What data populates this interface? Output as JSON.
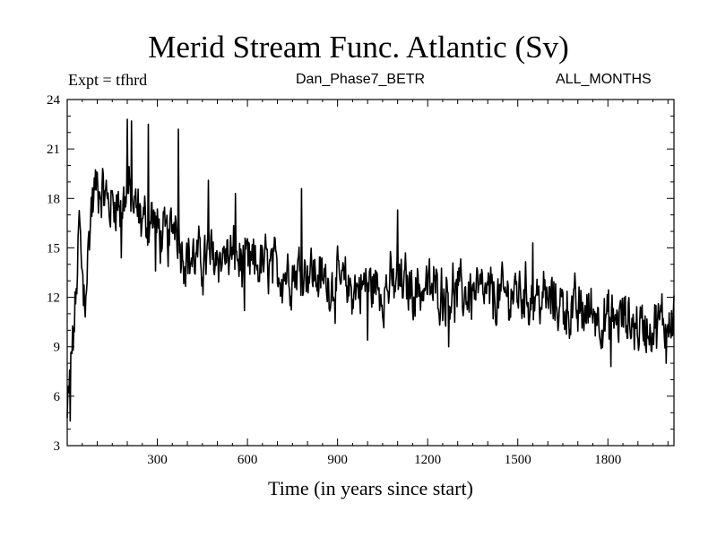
{
  "chart_data": {
    "type": "line",
    "title": "Merid Stream Func. Atlantic (Sv)",
    "left_label": "Expt = tfhrd",
    "center_label": "Dan_Phase7_BETR",
    "right_label": "ALL_MONTHS",
    "xlabel": "Time (in years since start)",
    "ylabel": "",
    "xlim": [
      0,
      2020
    ],
    "ylim": [
      3,
      24
    ],
    "xticks": [
      300,
      600,
      900,
      1200,
      1500,
      1800
    ],
    "yticks": [
      3,
      6,
      9,
      12,
      15,
      18,
      21,
      24
    ],
    "grid": false,
    "series": [
      {
        "name": "Merid Stream Func. Atlantic",
        "x": [
          0,
          10,
          20,
          30,
          40,
          50,
          60,
          80,
          100,
          120,
          140,
          160,
          180,
          200,
          220,
          240,
          260,
          280,
          300,
          320,
          340,
          360,
          380,
          400,
          450,
          500,
          550,
          600,
          650,
          700,
          750,
          800,
          850,
          900,
          950,
          1000,
          1050,
          1100,
          1150,
          1200,
          1250,
          1300,
          1350,
          1400,
          1450,
          1500,
          1550,
          1600,
          1650,
          1700,
          1750,
          1800,
          1850,
          1900,
          1950,
          2000,
          2020
        ],
        "values": [
          4.5,
          7.5,
          9.5,
          12,
          16.5,
          13,
          12,
          17.5,
          19,
          18.5,
          17.5,
          18,
          17.5,
          18.5,
          17.5,
          17,
          16.5,
          17,
          16,
          15.5,
          15.5,
          17,
          15,
          14.5,
          14.2,
          14.5,
          14.5,
          13.8,
          14,
          13.5,
          13.6,
          13.8,
          13,
          12.8,
          12.5,
          12.8,
          12.5,
          12.8,
          12.6,
          12.5,
          12.4,
          12.2,
          12.3,
          12.0,
          12.0,
          12.3,
          12.0,
          11.8,
          11.5,
          11.0,
          11.2,
          10.5,
          10.8,
          10.2,
          10.3,
          10.6,
          11.2
        ]
      }
    ],
    "peaks": {
      "x": [
        200,
        215,
        270,
        370,
        470,
        560,
        780,
        1100,
        1550
      ],
      "y": [
        22.8,
        22.7,
        22.5,
        22.2,
        19.1,
        18.3,
        18.6,
        17.3,
        15.3
      ]
    },
    "troughs": {
      "x": [
        10,
        55,
        180,
        295,
        590,
        1000,
        1270,
        1810,
        1995
      ],
      "y": [
        4.5,
        11.5,
        14.4,
        13.6,
        11.2,
        9.4,
        9.0,
        7.8,
        8.0
      ]
    },
    "noise_amplitude": 1.3,
    "line_color": "#000000"
  }
}
